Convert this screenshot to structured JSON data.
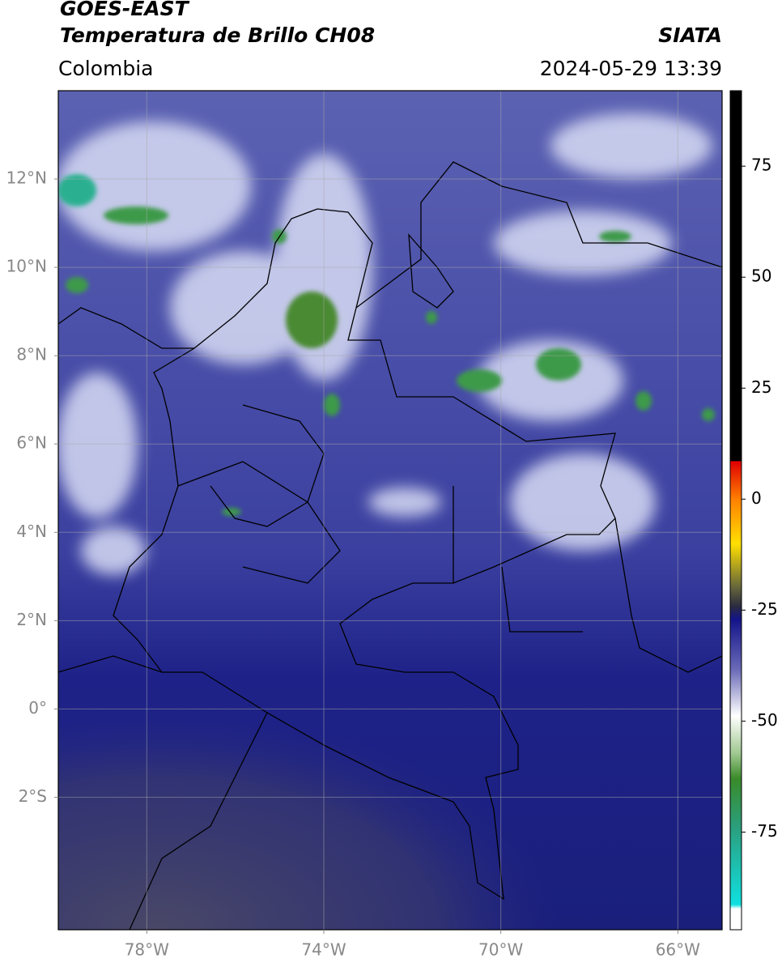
{
  "header": {
    "title": "GOES-EAST",
    "subtitle": "Temperatura de Brillo CH08",
    "source": "SIATA",
    "region": "Colombia",
    "datetime": "2024-05-29 13:39"
  },
  "map": {
    "lonlim": [
      -80,
      -65
    ],
    "latlim": [
      -5,
      14
    ],
    "lonticks": [
      {
        "value": -78,
        "label": "78°W"
      },
      {
        "value": -74,
        "label": "74°W"
      },
      {
        "value": -70,
        "label": "70°W"
      },
      {
        "value": -66,
        "label": "66°W"
      }
    ],
    "latticks": [
      {
        "value": 12,
        "label": "12°N"
      },
      {
        "value": 10,
        "label": "10°N"
      },
      {
        "value": 8,
        "label": "8°N"
      },
      {
        "value": 6,
        "label": "6°N"
      },
      {
        "value": 4,
        "label": "4°N"
      },
      {
        "value": 2,
        "label": "2°N"
      },
      {
        "value": 0,
        "label": "0°"
      },
      {
        "value": -2,
        "label": "2°S"
      }
    ],
    "grid": true
  },
  "colorbar": {
    "lim": [
      -97,
      92
    ],
    "ticks": [
      75,
      50,
      25,
      0,
      -25,
      -50,
      -75
    ]
  }
}
